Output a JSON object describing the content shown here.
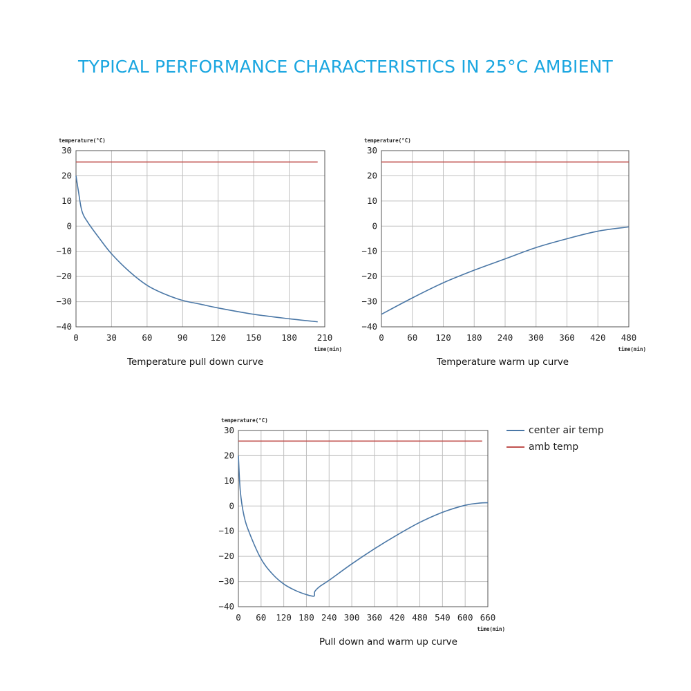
{
  "title": "TYPICAL PERFORMANCE CHARACTERISTICS IN 25°C AMBIENT",
  "colors": {
    "title": "#1aa6e0",
    "center_air": "#4a77a6",
    "ambient": "#c0504d",
    "grid": "#bfbfbf"
  },
  "legend": [
    {
      "name": "center air temp",
      "color": "#4a77a6"
    },
    {
      "name": "amb temp",
      "color": "#c0504d"
    }
  ],
  "chart_data": [
    {
      "type": "line",
      "caption": "Temperature pull down curve",
      "ylabel": "temperature(°C)",
      "xlabel": "time(min)",
      "xlim": [
        0,
        210
      ],
      "ylim": [
        -40,
        30
      ],
      "x_ticks": [
        0,
        30,
        60,
        90,
        120,
        150,
        180,
        210
      ],
      "y_ticks": [
        30,
        20,
        10,
        0,
        -10,
        -20,
        -30,
        -40
      ],
      "series": [
        {
          "name": "center air temp",
          "color": "#4a77a6",
          "x": [
            0,
            2,
            5,
            10,
            20,
            30,
            45,
            60,
            75,
            90,
            105,
            120,
            150,
            180,
            204
          ],
          "y": [
            20,
            14,
            6,
            1.5,
            -5,
            -11,
            -18,
            -23.5,
            -27,
            -29.5,
            -31,
            -32.5,
            -35,
            -36.8,
            -38
          ]
        },
        {
          "name": "amb temp",
          "color": "#c0504d",
          "x": [
            0,
            204
          ],
          "y": [
            25.5,
            25.5
          ]
        }
      ]
    },
    {
      "type": "line",
      "caption": "Temperature warm up  curve",
      "ylabel": "temperature(°C)",
      "xlabel": "time(min)",
      "xlim": [
        0,
        480
      ],
      "ylim": [
        -40,
        30
      ],
      "x_ticks": [
        0,
        60,
        120,
        180,
        240,
        300,
        360,
        420,
        480
      ],
      "y_ticks": [
        30,
        20,
        10,
        0,
        -10,
        -20,
        -30,
        -40
      ],
      "series": [
        {
          "name": "center air temp",
          "color": "#4a77a6",
          "x": [
            0,
            60,
            120,
            180,
            240,
            300,
            360,
            420,
            480
          ],
          "y": [
            -35,
            -28.5,
            -22.5,
            -17.5,
            -13,
            -8.5,
            -5,
            -2,
            -0.3
          ]
        },
        {
          "name": "amb temp",
          "color": "#c0504d",
          "x": [
            0,
            480
          ],
          "y": [
            25.5,
            25.5
          ]
        }
      ]
    },
    {
      "type": "line",
      "caption": "Pull down and warm up curve",
      "ylabel": "temperature(°C)",
      "xlabel": "time(min)",
      "xlim": [
        0,
        660
      ],
      "ylim": [
        -40,
        30
      ],
      "x_ticks": [
        0,
        60,
        120,
        180,
        240,
        300,
        360,
        420,
        480,
        540,
        600,
        660
      ],
      "y_ticks": [
        30,
        20,
        10,
        0,
        -10,
        -20,
        -30,
        -40
      ],
      "series": [
        {
          "name": "center air temp",
          "color": "#4a77a6",
          "x": [
            0,
            5,
            15,
            30,
            60,
            90,
            120,
            150,
            180,
            200,
            202,
            215,
            240,
            300,
            360,
            420,
            480,
            540,
            600,
            640,
            660
          ],
          "y": [
            20,
            6,
            -4,
            -11,
            -21,
            -27,
            -31,
            -33.5,
            -35.2,
            -35.8,
            -34,
            -32,
            -29.5,
            -23,
            -17,
            -11.5,
            -6.5,
            -2.5,
            0.3,
            1.2,
            1.3
          ]
        },
        {
          "name": "amb temp",
          "color": "#c0504d",
          "x": [
            0,
            645
          ],
          "y": [
            25.8,
            25.8
          ]
        }
      ]
    }
  ]
}
